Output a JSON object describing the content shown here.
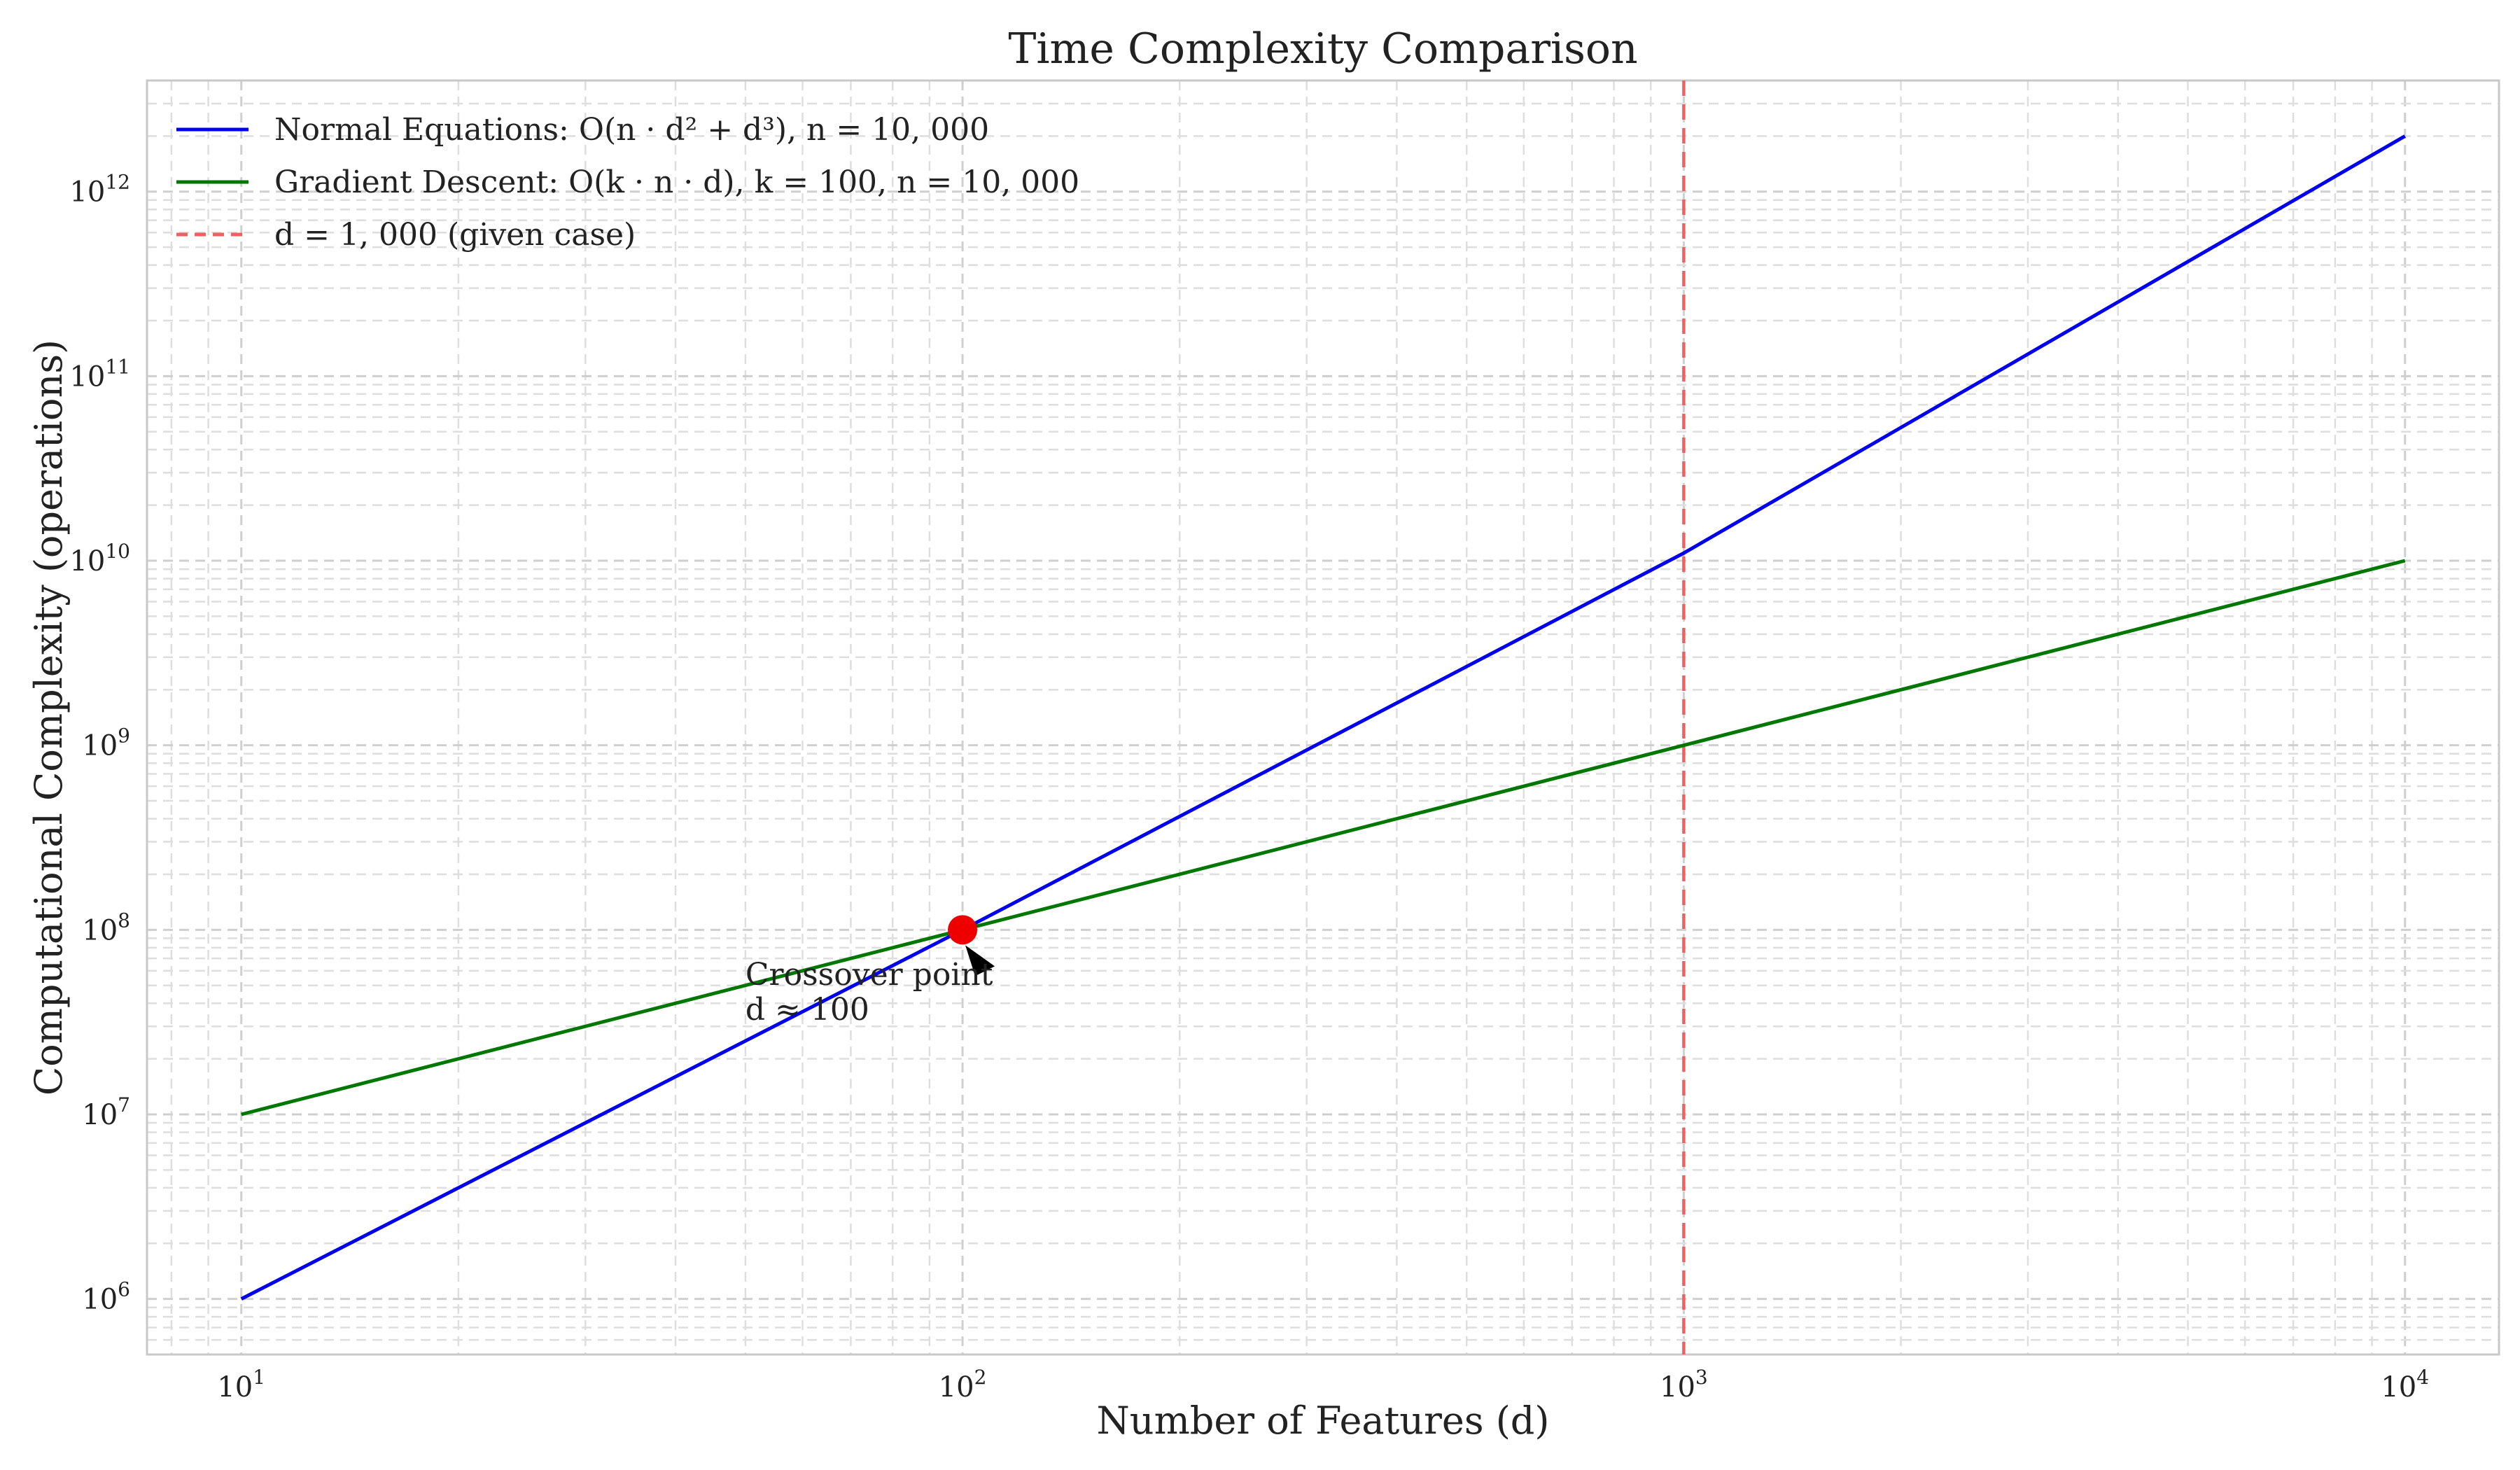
{
  "chart_data": {
    "type": "line",
    "title": "Time Complexity Comparison",
    "xlabel": "Number of Features (d)",
    "ylabel": "Computational Complexity (operations)",
    "xscale": "log",
    "yscale": "log",
    "xlim": [
      7.4,
      13500
    ],
    "ylim": [
      500000,
      4000000000000
    ],
    "xticks": [
      {
        "value": 10,
        "base": "10",
        "exp": "1"
      },
      {
        "value": 100,
        "base": "10",
        "exp": "2"
      },
      {
        "value": 1000,
        "base": "10",
        "exp": "3"
      },
      {
        "value": 10000,
        "base": "10",
        "exp": "4"
      }
    ],
    "yticks": [
      {
        "value": 1000000,
        "base": "10",
        "exp": "6"
      },
      {
        "value": 10000000,
        "base": "10",
        "exp": "7"
      },
      {
        "value": 100000000,
        "base": "10",
        "exp": "8"
      },
      {
        "value": 1000000000,
        "base": "10",
        "exp": "9"
      },
      {
        "value": 10000000000,
        "base": "10",
        "exp": "10"
      },
      {
        "value": 100000000000,
        "base": "10",
        "exp": "11"
      },
      {
        "value": 1000000000000,
        "base": "10",
        "exp": "12"
      }
    ],
    "grid": true,
    "legend_position": "top-left",
    "series": [
      {
        "name": "Normal Equations: O(n · d² + d³), n = 10, 000",
        "color": "#0000ee",
        "x": [
          10,
          100,
          1000,
          10000
        ],
        "y": [
          1000000,
          100000000,
          11000000000,
          2000000000000
        ]
      },
      {
        "name": "Gradient Descent: O(k · n · d), k = 100, n = 10, 000",
        "color": "#007700",
        "x": [
          10,
          100,
          1000,
          10000
        ],
        "y": [
          10000000,
          100000000,
          1000000000,
          10000000000
        ]
      }
    ],
    "vline": {
      "x": 1000,
      "label": "d = 1, 000 (given case)",
      "color": "#f06060"
    },
    "marker": {
      "x": 100,
      "y": 100000000,
      "color": "#ee0000"
    },
    "annotation": {
      "line1": "Crossover point",
      "line2": "d ≈ 100",
      "x": 50,
      "y": 55000000
    }
  }
}
